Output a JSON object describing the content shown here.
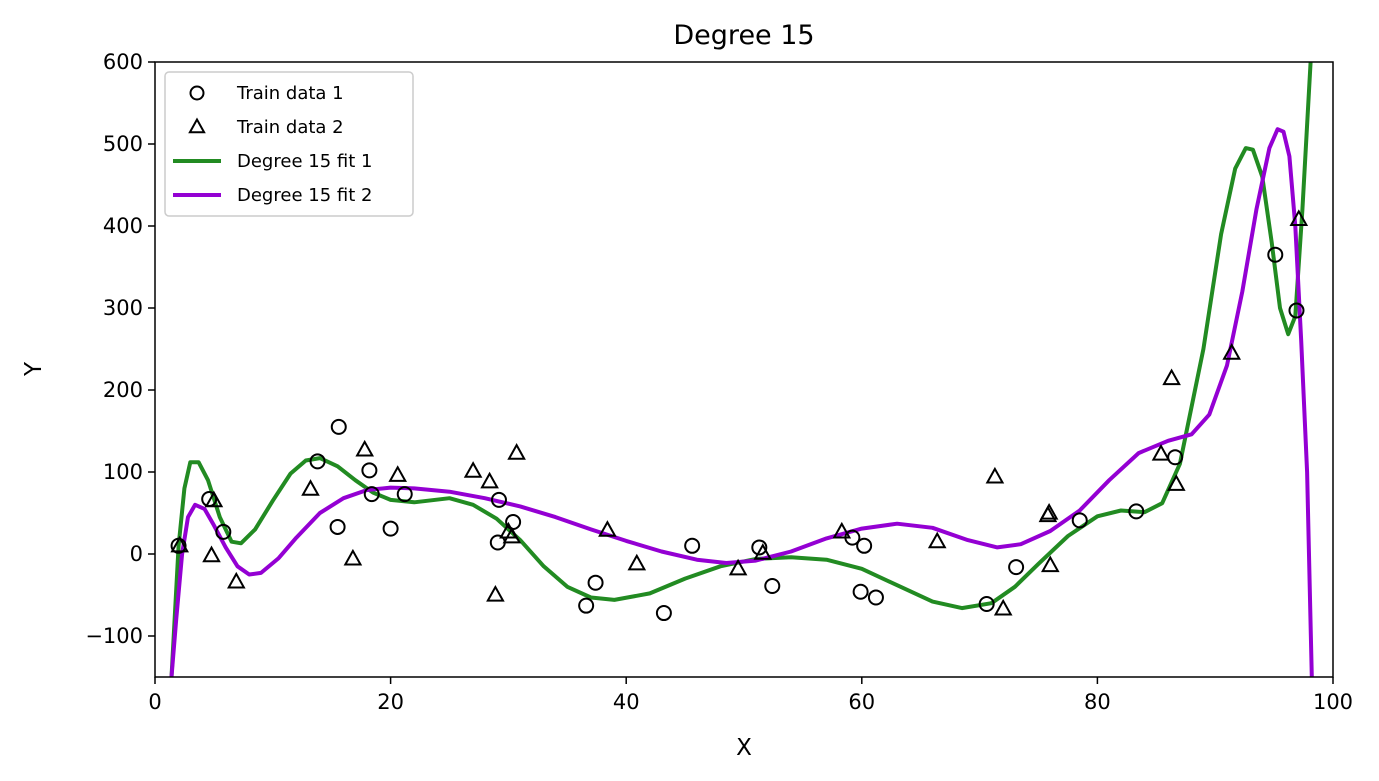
{
  "chart_data": {
    "type": "scatter",
    "title": "Degree 15",
    "xlabel": "X",
    "ylabel": "Y",
    "xlim": [
      0,
      100
    ],
    "ylim": [
      -150,
      600
    ],
    "xticks": [
      0,
      20,
      40,
      60,
      80,
      100
    ],
    "yticks": [
      -100,
      0,
      100,
      200,
      300,
      400,
      500,
      600
    ],
    "xtick_labels": [
      "0",
      "20",
      "40",
      "60",
      "80",
      "100"
    ],
    "ytick_labels": [
      "−100",
      "0",
      "100",
      "200",
      "300",
      "400",
      "500",
      "600"
    ],
    "grid": false,
    "legend_position": "upper-left",
    "legend": [
      "Train data 1",
      "Train data 2",
      "Degree 15 fit 1",
      "Degree 15 fit 2"
    ],
    "series": [
      {
        "name": "Train data 1",
        "kind": "scatter",
        "marker": "circle",
        "color": "#000000",
        "points": [
          [
            2.0,
            10
          ],
          [
            4.6,
            67
          ],
          [
            5.8,
            27
          ],
          [
            13.8,
            113
          ],
          [
            15.5,
            33
          ],
          [
            15.6,
            155
          ],
          [
            18.2,
            102
          ],
          [
            18.4,
            73
          ],
          [
            20.0,
            31
          ],
          [
            21.2,
            73
          ],
          [
            29.1,
            14
          ],
          [
            29.2,
            66
          ],
          [
            30.4,
            39
          ],
          [
            36.6,
            -63
          ],
          [
            37.4,
            -35
          ],
          [
            43.2,
            -72
          ],
          [
            45.6,
            10
          ],
          [
            51.3,
            8
          ],
          [
            52.4,
            -39
          ],
          [
            59.2,
            20
          ],
          [
            59.9,
            -46
          ],
          [
            60.2,
            10
          ],
          [
            61.2,
            -53
          ],
          [
            70.6,
            -61
          ],
          [
            73.1,
            -16
          ],
          [
            78.5,
            41
          ],
          [
            83.3,
            52
          ],
          [
            86.6,
            118
          ],
          [
            95.1,
            365
          ],
          [
            96.9,
            297
          ]
        ]
      },
      {
        "name": "Train data 2",
        "kind": "scatter",
        "marker": "triangle",
        "color": "#000000",
        "points": [
          [
            2.1,
            10
          ],
          [
            4.8,
            -2
          ],
          [
            5.0,
            65
          ],
          [
            6.9,
            -34
          ],
          [
            13.2,
            79
          ],
          [
            16.8,
            -6
          ],
          [
            17.8,
            127
          ],
          [
            20.6,
            96
          ],
          [
            27.0,
            101
          ],
          [
            28.4,
            88
          ],
          [
            28.9,
            -50
          ],
          [
            30.0,
            27
          ],
          [
            30.3,
            21
          ],
          [
            30.7,
            123
          ],
          [
            38.4,
            29
          ],
          [
            40.9,
            -12
          ],
          [
            49.5,
            -18
          ],
          [
            51.6,
            1
          ],
          [
            58.3,
            27
          ],
          [
            66.4,
            15
          ],
          [
            71.3,
            94
          ],
          [
            72.0,
            -67
          ],
          [
            75.8,
            47
          ],
          [
            75.9,
            50
          ],
          [
            76.0,
            -14
          ],
          [
            85.4,
            122
          ],
          [
            86.3,
            214
          ],
          [
            86.7,
            85
          ],
          [
            91.4,
            245
          ],
          [
            97.1,
            408
          ]
        ]
      },
      {
        "name": "Degree 15 fit 1",
        "kind": "line",
        "color": "#228B22",
        "points": [
          [
            1.4,
            -150
          ],
          [
            2.0,
            10
          ],
          [
            2.5,
            80
          ],
          [
            3.0,
            112
          ],
          [
            3.7,
            112
          ],
          [
            4.5,
            90
          ],
          [
            5.5,
            45
          ],
          [
            6.5,
            15
          ],
          [
            7.3,
            13
          ],
          [
            8.5,
            30
          ],
          [
            10.0,
            65
          ],
          [
            11.5,
            98
          ],
          [
            12.8,
            114
          ],
          [
            14.0,
            117
          ],
          [
            15.5,
            107
          ],
          [
            17.0,
            90
          ],
          [
            18.5,
            75
          ],
          [
            20.0,
            66
          ],
          [
            22.0,
            63
          ],
          [
            25.0,
            68
          ],
          [
            27.0,
            60
          ],
          [
            29.0,
            43
          ],
          [
            31.0,
            17
          ],
          [
            33.0,
            -15
          ],
          [
            35.0,
            -40
          ],
          [
            37.0,
            -53
          ],
          [
            39.0,
            -56
          ],
          [
            42.0,
            -48
          ],
          [
            45.0,
            -30
          ],
          [
            48.0,
            -15
          ],
          [
            51.0,
            -6
          ],
          [
            54.0,
            -4
          ],
          [
            57.0,
            -7
          ],
          [
            60.0,
            -18
          ],
          [
            63.0,
            -38
          ],
          [
            66.0,
            -58
          ],
          [
            68.5,
            -66
          ],
          [
            71.0,
            -60
          ],
          [
            73.0,
            -40
          ],
          [
            75.0,
            -12
          ],
          [
            77.5,
            22
          ],
          [
            80.0,
            46
          ],
          [
            82.0,
            53
          ],
          [
            84.0,
            51
          ],
          [
            85.5,
            62
          ],
          [
            87.0,
            110
          ],
          [
            89.0,
            250
          ],
          [
            90.5,
            390
          ],
          [
            91.7,
            470
          ],
          [
            92.6,
            495
          ],
          [
            93.2,
            493
          ],
          [
            94.0,
            460
          ],
          [
            94.8,
            380
          ],
          [
            95.5,
            300
          ],
          [
            96.2,
            268
          ],
          [
            96.8,
            290
          ],
          [
            97.4,
            420
          ],
          [
            98.1,
            600
          ]
        ]
      },
      {
        "name": "Degree 15 fit 2",
        "kind": "line",
        "color": "#9400D3",
        "points": [
          [
            1.4,
            -150
          ],
          [
            1.8,
            -80
          ],
          [
            2.3,
            0
          ],
          [
            2.8,
            45
          ],
          [
            3.4,
            60
          ],
          [
            4.2,
            55
          ],
          [
            5.0,
            35
          ],
          [
            6.0,
            8
          ],
          [
            7.0,
            -15
          ],
          [
            8.0,
            -25
          ],
          [
            9.0,
            -23
          ],
          [
            10.5,
            -5
          ],
          [
            12.0,
            20
          ],
          [
            14.0,
            50
          ],
          [
            16.0,
            68
          ],
          [
            18.0,
            78
          ],
          [
            20.0,
            81
          ],
          [
            22.0,
            80
          ],
          [
            25.0,
            76
          ],
          [
            28.0,
            68
          ],
          [
            31.0,
            58
          ],
          [
            34.0,
            45
          ],
          [
            37.0,
            30
          ],
          [
            40.0,
            16
          ],
          [
            43.0,
            3
          ],
          [
            46.0,
            -7
          ],
          [
            48.5,
            -11
          ],
          [
            51.0,
            -8
          ],
          [
            54.0,
            3
          ],
          [
            57.0,
            19
          ],
          [
            60.0,
            31
          ],
          [
            63.0,
            37
          ],
          [
            66.0,
            32
          ],
          [
            69.0,
            17
          ],
          [
            71.5,
            8
          ],
          [
            73.5,
            12
          ],
          [
            76.0,
            28
          ],
          [
            78.5,
            53
          ],
          [
            81.0,
            90
          ],
          [
            83.5,
            123
          ],
          [
            86.0,
            138
          ],
          [
            88.0,
            146
          ],
          [
            89.5,
            170
          ],
          [
            91.0,
            230
          ],
          [
            92.3,
            320
          ],
          [
            93.5,
            420
          ],
          [
            94.6,
            495
          ],
          [
            95.3,
            518
          ],
          [
            95.8,
            515
          ],
          [
            96.3,
            485
          ],
          [
            96.8,
            400
          ],
          [
            97.3,
            260
          ],
          [
            97.8,
            100
          ],
          [
            98.2,
            -150
          ]
        ]
      }
    ]
  }
}
